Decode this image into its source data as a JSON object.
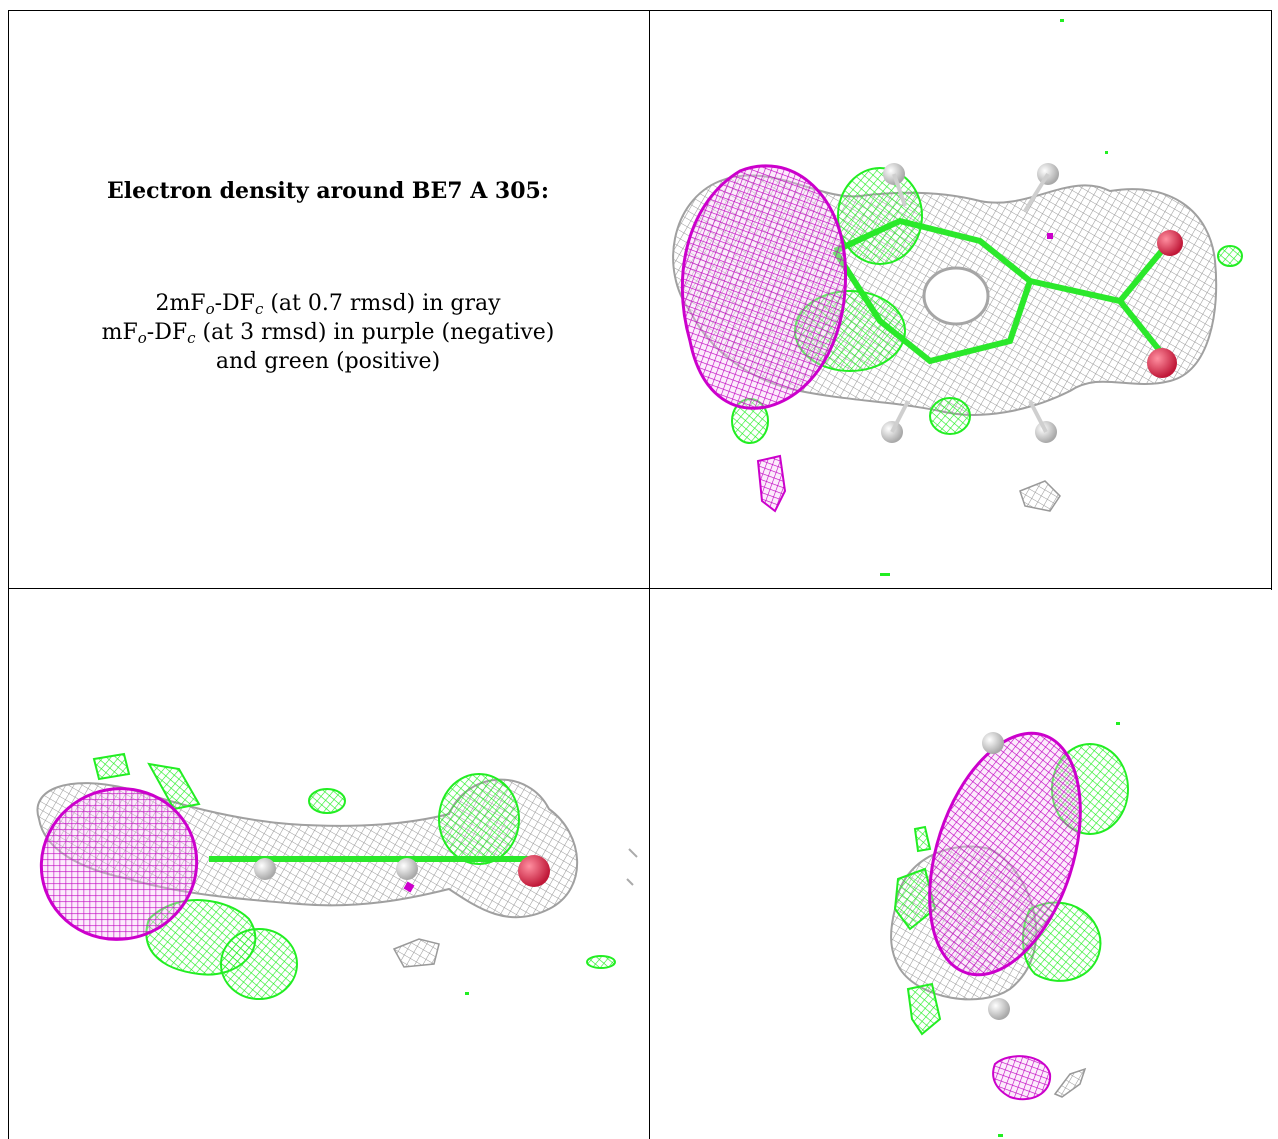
{
  "caption": {
    "title": "Electron density around BE7 A 305:",
    "line1": {
      "pre": "2mF",
      "sub1": "o",
      "mid": "-DF",
      "sub2": "c",
      "post": " (at 0.7 rmsd) in gray"
    },
    "line2": {
      "pre": "mF",
      "sub1": "o",
      "mid": "-DF",
      "sub2": "c",
      "post": " (at 3 rmsd) in purple (negative)"
    },
    "line3": "and green (positive)"
  },
  "colors": {
    "gray_mesh": "#9e9e9e",
    "negative_purple": "#cc00cc",
    "positive_green": "#22ee22",
    "oxygen_red": "#e0304a",
    "hydrogen_white": "#e8e8e8"
  },
  "panels": [
    {
      "name": "view-top-right"
    },
    {
      "name": "view-bottom-left"
    },
    {
      "name": "view-bottom-right"
    }
  ]
}
